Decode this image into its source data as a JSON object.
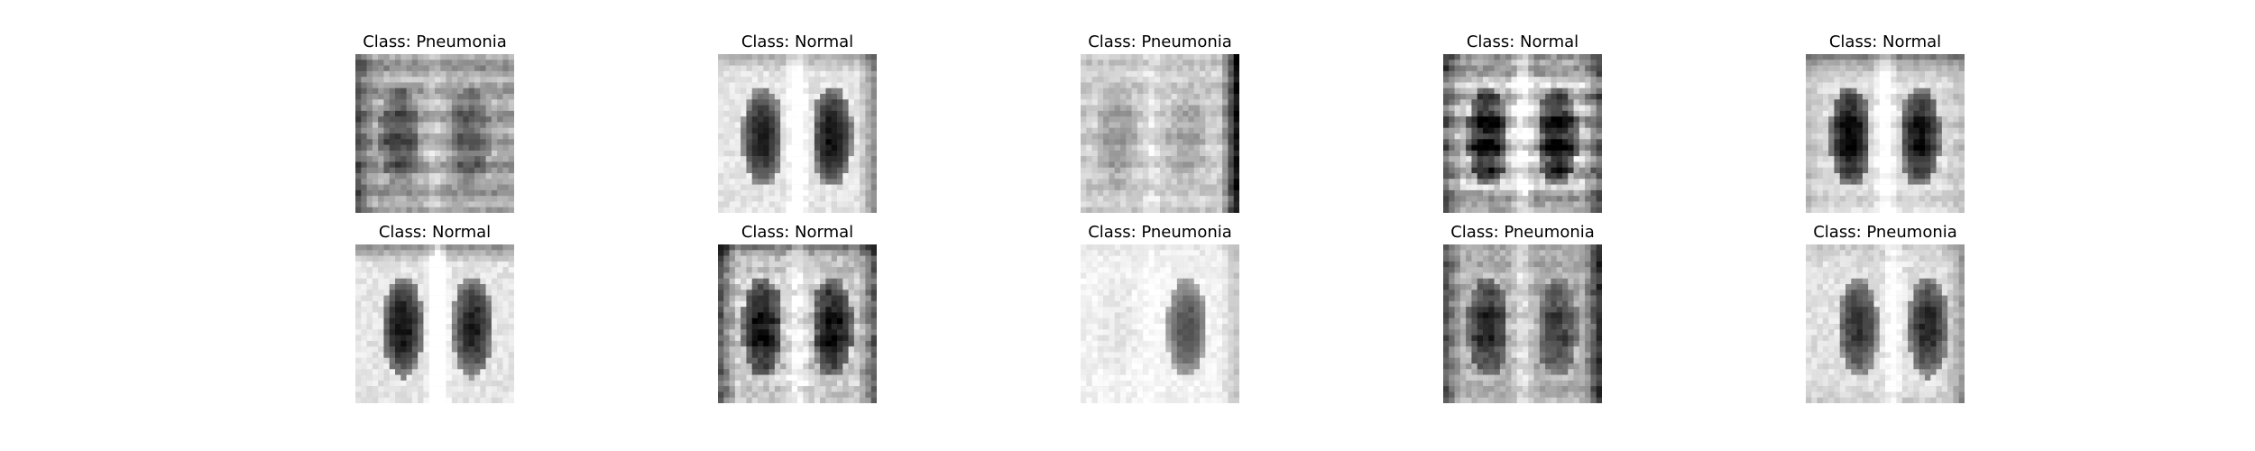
{
  "figure": {
    "panels": [
      {
        "title": "Class: Pneumonia",
        "image": "chest-xray-image"
      },
      {
        "title": "Class: Normal",
        "image": "chest-xray-image"
      },
      {
        "title": "Class: Pneumonia",
        "image": "chest-xray-image"
      },
      {
        "title": "Class: Normal",
        "image": "chest-xray-image"
      },
      {
        "title": "Class: Normal",
        "image": "chest-xray-image"
      },
      {
        "title": "Class: Normal",
        "image": "chest-xray-image"
      },
      {
        "title": "Class: Normal",
        "image": "chest-xray-image"
      },
      {
        "title": "Class: Pneumonia",
        "image": "chest-xray-image"
      },
      {
        "title": "Class: Pneumonia",
        "image": "chest-xray-image"
      },
      {
        "title": "Class: Pneumonia",
        "image": "chest-xray-image"
      }
    ]
  }
}
